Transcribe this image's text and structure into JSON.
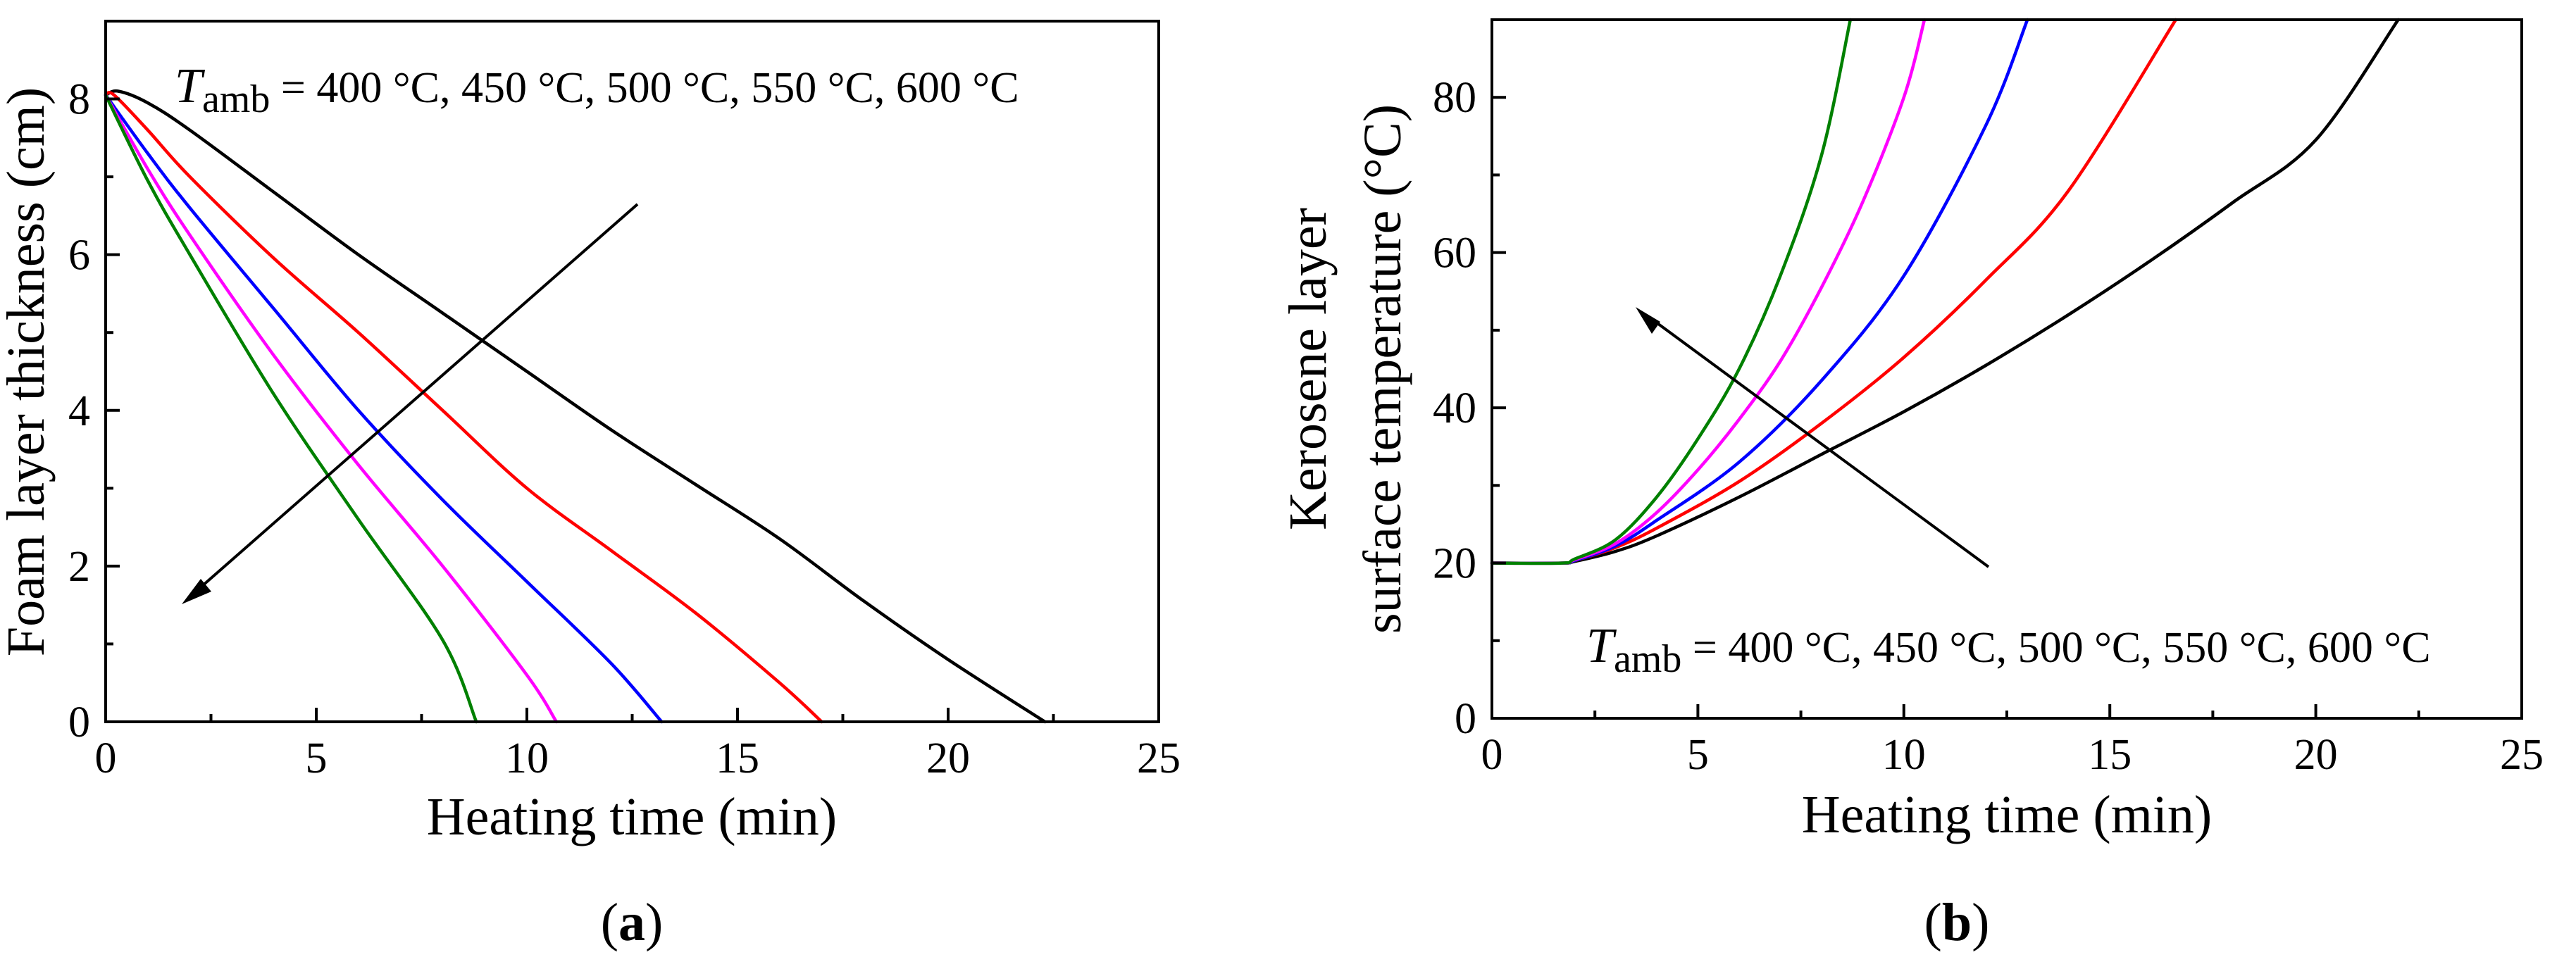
{
  "chart_data": [
    {
      "type": "line",
      "panel_id": "a",
      "panel_label": "a",
      "xlabel": "Heating time (min)",
      "ylabel": "Foam layer thickness (cm)",
      "xlim": [
        0,
        25
      ],
      "ylim": [
        0,
        9
      ],
      "xticks": [
        0,
        5,
        10,
        15,
        20,
        25
      ],
      "yticks": [
        0,
        2,
        4,
        6,
        8
      ],
      "grid": false,
      "annotation": {
        "symbol": "T",
        "subscript": "amb",
        "text": " = 400 °C, 450 °C, 500 °C, 550 °C, 600 °C"
      },
      "series": [
        {
          "name": "400 °C",
          "color": "#000000",
          "x": [
            0,
            0.3,
            1,
            2,
            4,
            6,
            8,
            10,
            12,
            14,
            16,
            18,
            20,
            22.3
          ],
          "y": [
            8.05,
            8.1,
            7.95,
            7.6,
            6.8,
            6.0,
            5.25,
            4.5,
            3.75,
            3.05,
            2.35,
            1.55,
            0.8,
            0
          ]
        },
        {
          "name": "450 °C",
          "color": "#ff0000",
          "x": [
            0,
            0.2,
            1,
            2,
            4,
            6,
            8,
            10,
            12,
            14,
            16,
            17
          ],
          "y": [
            8.05,
            8.05,
            7.6,
            7.0,
            5.95,
            5.0,
            4.0,
            3.0,
            2.2,
            1.4,
            0.5,
            0
          ]
        },
        {
          "name": "500 °C",
          "color": "#0000ff",
          "x": [
            0,
            1,
            2,
            4,
            6,
            8,
            10,
            12,
            13.2
          ],
          "y": [
            8.05,
            7.3,
            6.6,
            5.3,
            4.0,
            2.85,
            1.8,
            0.75,
            0
          ]
        },
        {
          "name": "550 °C",
          "color": "#ff00ff",
          "x": [
            0,
            1,
            2,
            4,
            6,
            8,
            10,
            10.7
          ],
          "y": [
            8.05,
            7.1,
            6.25,
            4.7,
            3.3,
            2.0,
            0.6,
            0
          ]
        },
        {
          "name": "600 °C",
          "color": "#008000",
          "x": [
            0,
            1,
            2,
            4,
            6,
            8,
            8.8
          ],
          "y": [
            8.05,
            6.95,
            6.0,
            4.2,
            2.6,
            1.05,
            0
          ]
        }
      ]
    },
    {
      "type": "line",
      "panel_id": "b",
      "panel_label": "b",
      "xlabel": "Heating time (min)",
      "ylabel_lines": [
        "Kerosene layer",
        "surface temperature (°C)"
      ],
      "xlim": [
        0,
        25
      ],
      "ylim": [
        0,
        90
      ],
      "xticks": [
        0,
        5,
        10,
        15,
        20,
        25
      ],
      "yticks": [
        0,
        20,
        40,
        60,
        80
      ],
      "grid": false,
      "annotation": {
        "symbol": "T",
        "subscript": "amb",
        "text": " = 400 °C, 450 °C, 500 °C, 550 °C, 600 °C"
      },
      "series": [
        {
          "name": "400 °C",
          "color": "#000000",
          "x": [
            0,
            1.7,
            2,
            3,
            4,
            6,
            8,
            10,
            12,
            14,
            16,
            18,
            20,
            22
          ],
          "y": [
            20,
            20,
            20.2,
            21.5,
            23.5,
            28.5,
            34.0,
            39.5,
            45.5,
            52.0,
            59.0,
            66.5,
            74.5,
            90
          ]
        },
        {
          "name": "450 °C",
          "color": "#ff0000",
          "x": [
            0,
            1.7,
            2,
            3,
            4,
            6,
            8,
            10,
            12,
            14,
            16.6
          ],
          "y": [
            20,
            20,
            20.3,
            22.0,
            24.5,
            30.5,
            38.0,
            46.5,
            56.5,
            68.0,
            90
          ]
        },
        {
          "name": "500 °C",
          "color": "#0000ff",
          "x": [
            0,
            1.7,
            2,
            3,
            4,
            6,
            8,
            10,
            12,
            13
          ],
          "y": [
            20,
            20,
            20.3,
            22.2,
            25.5,
            33.0,
            43.5,
            57.0,
            76.5,
            90
          ]
        },
        {
          "name": "550 °C",
          "color": "#ff00ff",
          "x": [
            0,
            1.7,
            2,
            3,
            4,
            5,
            6,
            7,
            8,
            9,
            10,
            10.5
          ],
          "y": [
            20,
            20,
            20.4,
            22.5,
            26.5,
            32.0,
            38.5,
            46.0,
            55.5,
            66.5,
            80.0,
            90
          ]
        },
        {
          "name": "600 °C",
          "color": "#008000",
          "x": [
            0,
            1.7,
            2,
            3,
            4,
            5,
            6,
            7,
            8,
            8.7
          ],
          "y": [
            20,
            20,
            20.5,
            23.0,
            28.5,
            36.0,
            45.0,
            57.0,
            72.5,
            90
          ]
        }
      ]
    }
  ]
}
